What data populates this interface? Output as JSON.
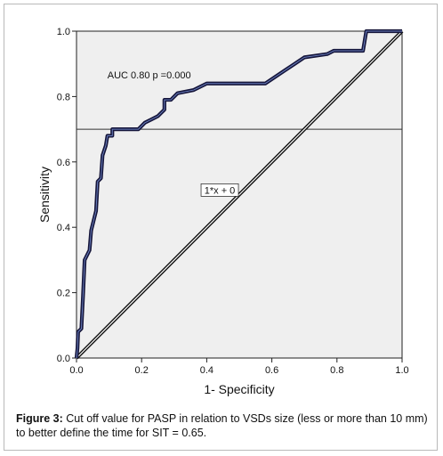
{
  "caption": {
    "label": "Figure 3:",
    "text": " Cut off value for PASP in relation to VSDs size (less or more than 10 mm) to better define the time for SIT = 0.65."
  },
  "chart_data": {
    "type": "line",
    "title": "",
    "xlabel": "1- Specificity",
    "ylabel": "Sensitivity",
    "xlim": [
      0.0,
      1.0
    ],
    "ylim": [
      0.0,
      1.0
    ],
    "xticks": [
      "0.0",
      "0.2",
      "0.4",
      "0.6",
      "0.8",
      "1.0"
    ],
    "yticks": [
      "0.0",
      "0.2",
      "0.4",
      "0.6",
      "0.8",
      "1.0"
    ],
    "grid": false,
    "plot_background": "#efefef",
    "annotations": [
      "AUC 0.80 p =0.000",
      "1*x + 0"
    ],
    "reference_line_y": 0.7,
    "series": [
      {
        "values": [
          [
            0.0,
            0.0
          ],
          [
            0.003,
            0.03
          ],
          [
            0.005,
            0.08
          ],
          [
            0.015,
            0.09
          ],
          [
            0.02,
            0.19
          ],
          [
            0.025,
            0.3
          ],
          [
            0.04,
            0.33
          ],
          [
            0.045,
            0.39
          ],
          [
            0.06,
            0.45
          ],
          [
            0.065,
            0.54
          ],
          [
            0.075,
            0.55
          ],
          [
            0.08,
            0.62
          ],
          [
            0.09,
            0.65
          ],
          [
            0.095,
            0.68
          ],
          [
            0.11,
            0.68
          ],
          [
            0.11,
            0.7
          ],
          [
            0.19,
            0.7
          ],
          [
            0.21,
            0.72
          ],
          [
            0.23,
            0.73
          ],
          [
            0.25,
            0.74
          ],
          [
            0.27,
            0.76
          ],
          [
            0.27,
            0.79
          ],
          [
            0.29,
            0.79
          ],
          [
            0.31,
            0.81
          ],
          [
            0.36,
            0.82
          ],
          [
            0.38,
            0.83
          ],
          [
            0.4,
            0.84
          ],
          [
            0.58,
            0.84
          ],
          [
            0.61,
            0.86
          ],
          [
            0.64,
            0.88
          ],
          [
            0.67,
            0.9
          ],
          [
            0.7,
            0.92
          ],
          [
            0.77,
            0.93
          ],
          [
            0.79,
            0.94
          ],
          [
            0.88,
            0.94
          ],
          [
            0.89,
            1.0
          ],
          [
            1.0,
            1.0
          ]
        ],
        "color": "#1a1a4a"
      },
      {
        "values": [
          [
            0.0,
            0.0
          ],
          [
            1.0,
            1.0
          ]
        ],
        "color": "#111111"
      }
    ]
  }
}
